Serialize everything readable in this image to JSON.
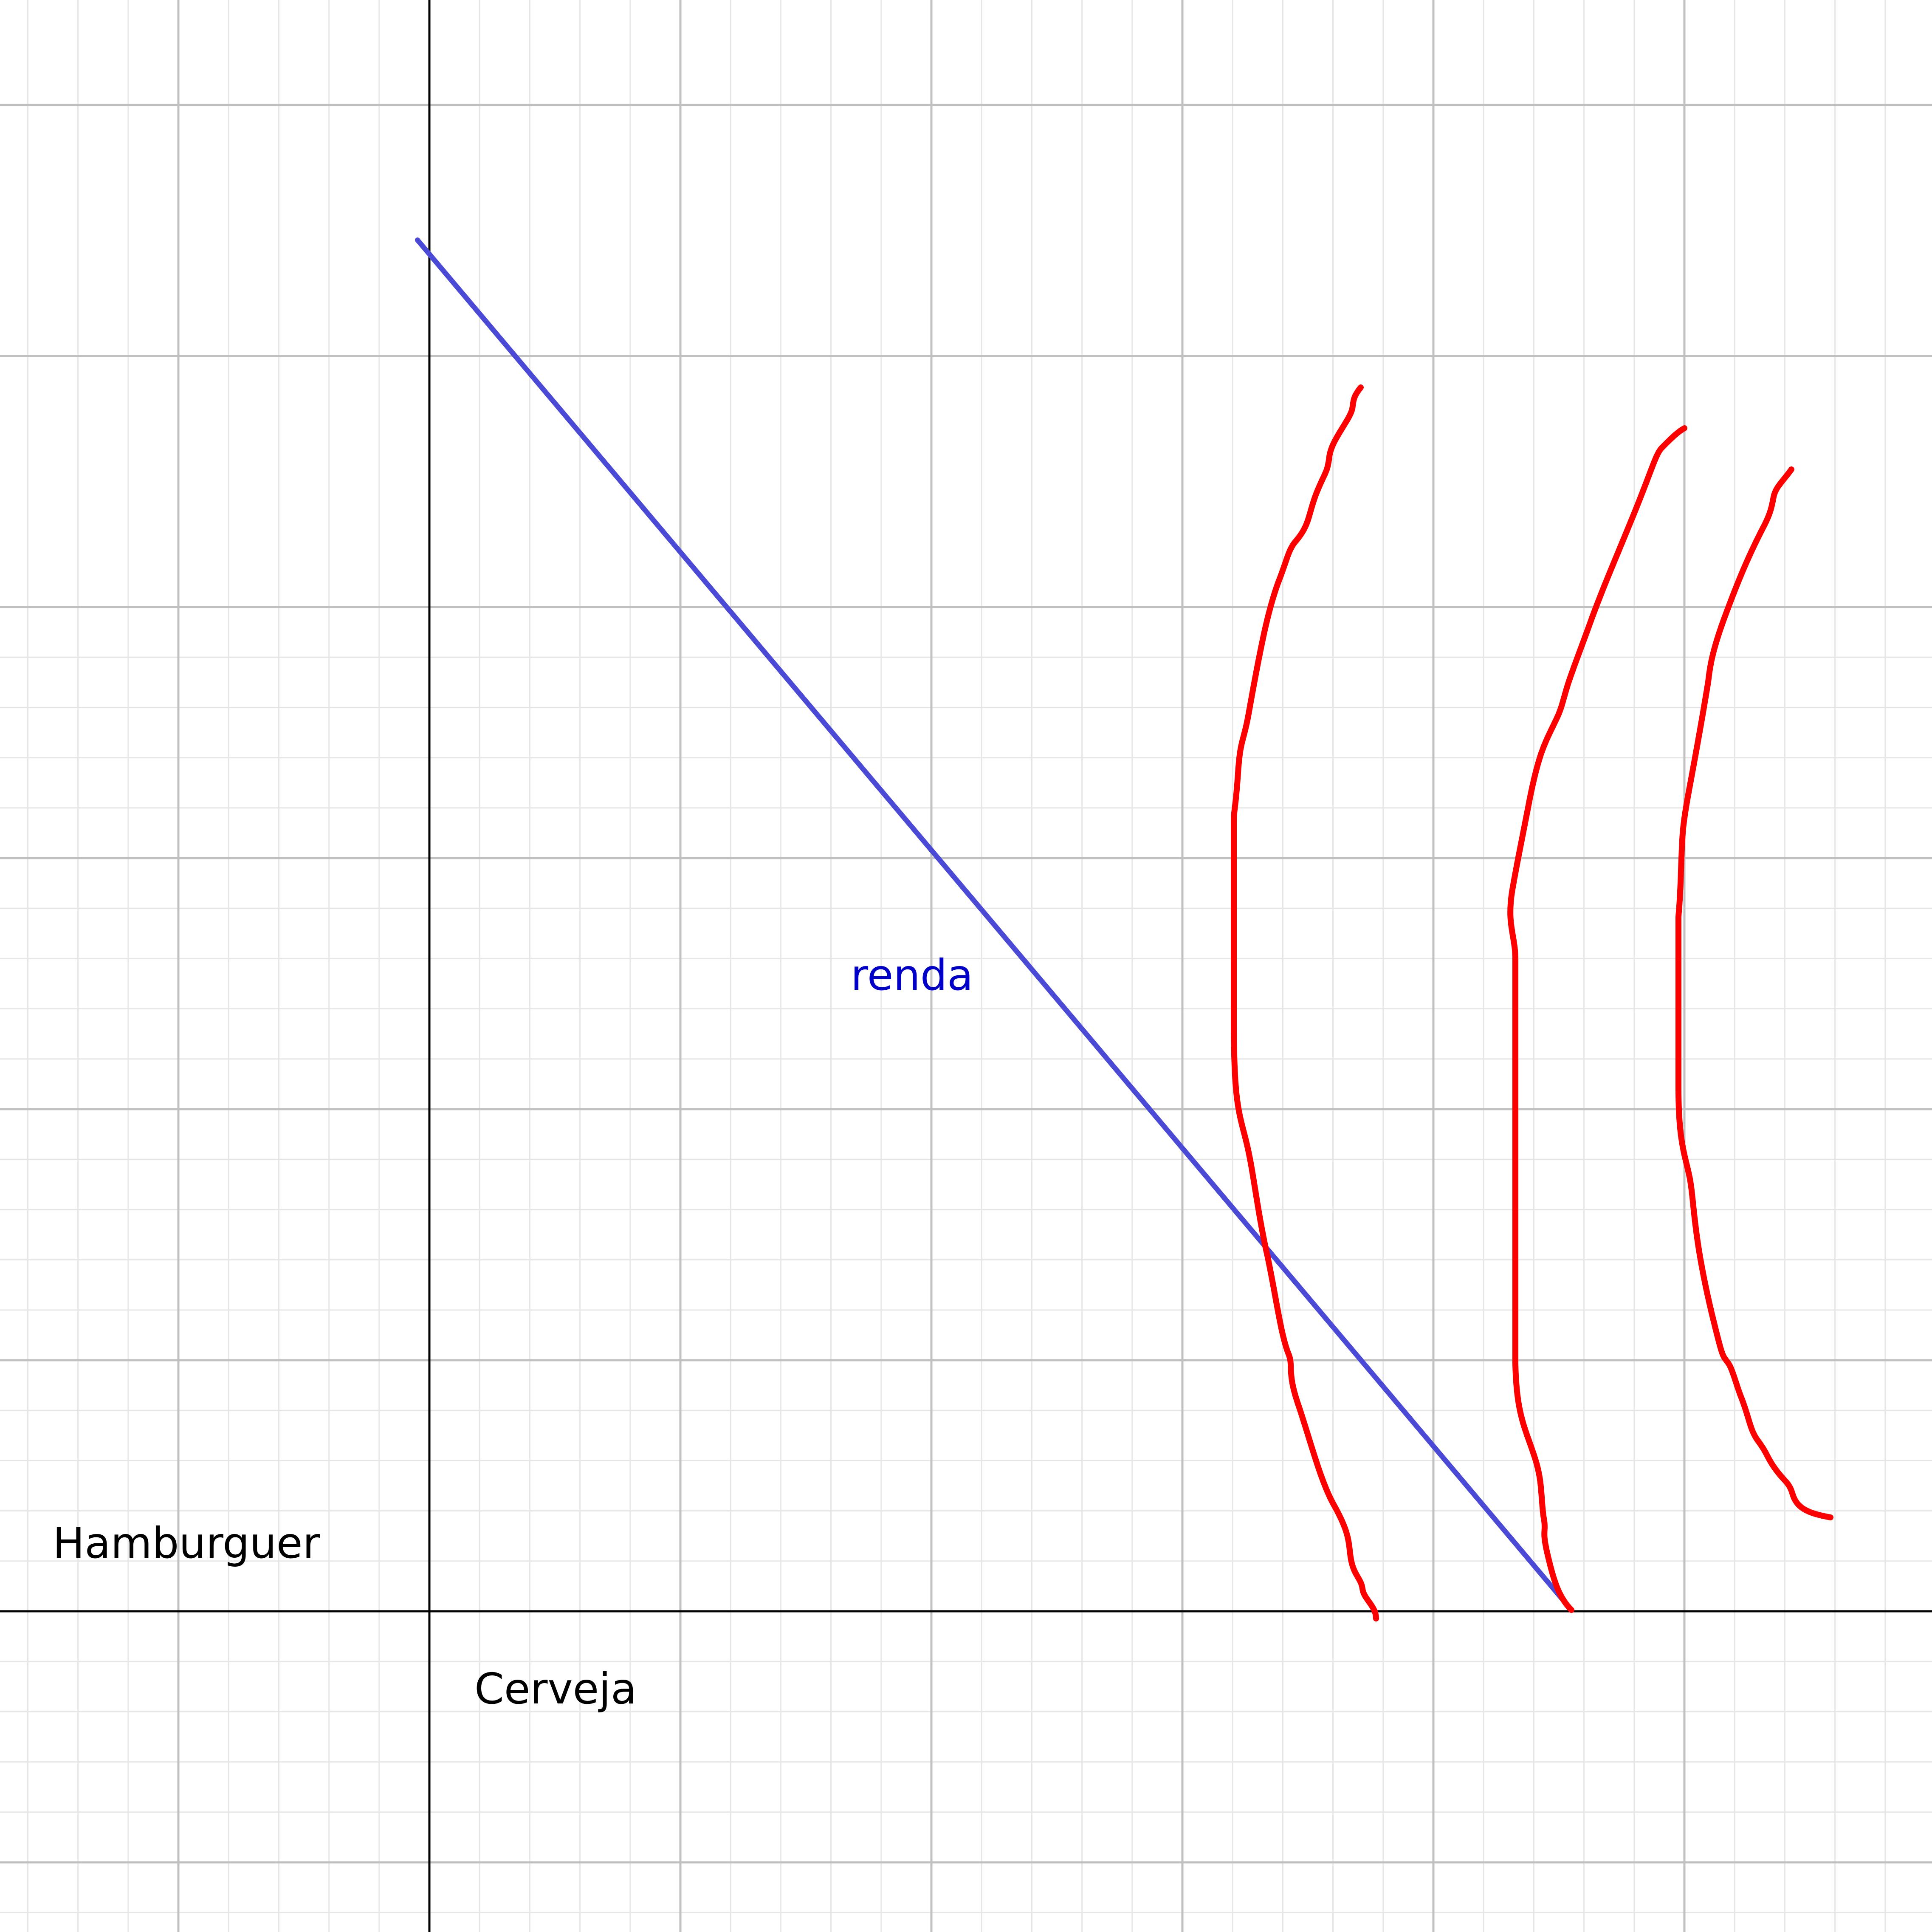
{
  "labels": {
    "curve_label": "renda",
    "y_axis_label": "Hamburguer",
    "x_axis_label": "Cerveja"
  },
  "colors": {
    "budget_line": "#4a4ad6",
    "indifference_curves": "#ff0000",
    "axes": "#000000",
    "major_grid": "#c0c0c0",
    "minor_grid": "#e6e6e6",
    "curve_label": "#0000c8"
  },
  "grid": {
    "major": true,
    "minor": true
  }
}
